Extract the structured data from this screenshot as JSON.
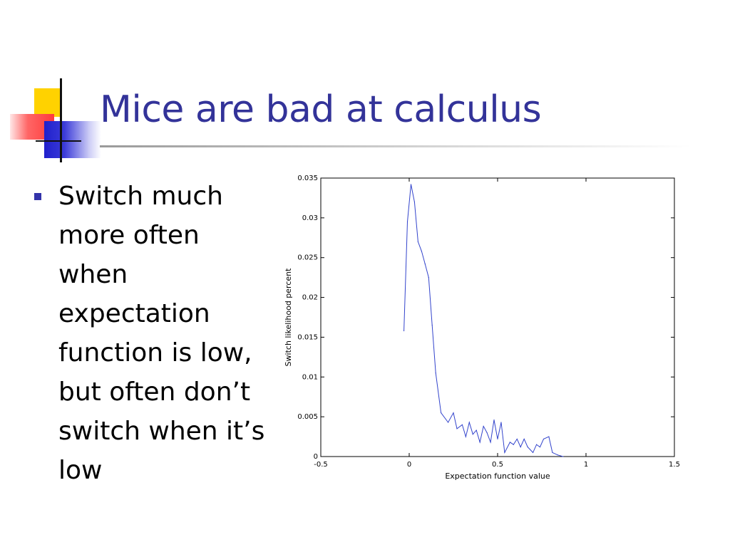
{
  "slide": {
    "title": "Mice are bad at calculus",
    "bullet": "Switch much more often when expectation function is low, but often don’t switch when it’s low"
  },
  "chart_data": {
    "type": "line",
    "title": "",
    "xlabel": "Expectation function value",
    "ylabel": "Switch likelihood percent",
    "xlim": [
      -0.5,
      1.5
    ],
    "ylim": [
      0,
      0.035
    ],
    "xticks": [
      "-0.5",
      "0",
      "0.5",
      "1",
      "1.5"
    ],
    "yticks": [
      "0",
      "0.005",
      "0.01",
      "0.015",
      "0.02",
      "0.025",
      "0.03",
      "0.035"
    ],
    "grid": false,
    "line_color": "#3344cc",
    "series": [
      {
        "x": [
          -0.03,
          -0.01,
          0.01,
          0.03,
          0.05,
          0.07,
          0.09,
          0.11,
          0.13,
          0.15,
          0.18,
          0.22,
          0.25,
          0.27,
          0.3,
          0.32,
          0.34,
          0.36,
          0.38,
          0.4,
          0.42,
          0.44,
          0.46,
          0.48,
          0.5,
          0.52,
          0.54,
          0.57,
          0.59,
          0.61,
          0.63,
          0.65,
          0.67,
          0.7,
          0.72,
          0.74,
          0.76,
          0.79,
          0.81,
          0.84,
          0.87
        ],
        "y": [
          0.0158,
          0.0295,
          0.0342,
          0.032,
          0.027,
          0.0258,
          0.0242,
          0.0225,
          0.0165,
          0.0105,
          0.0055,
          0.0043,
          0.0055,
          0.0035,
          0.004,
          0.0025,
          0.0043,
          0.0028,
          0.0033,
          0.0018,
          0.0038,
          0.003,
          0.0018,
          0.0046,
          0.0022,
          0.0043,
          0.0005,
          0.0018,
          0.0015,
          0.0022,
          0.0012,
          0.0022,
          0.0012,
          0.0005,
          0.0015,
          0.0012,
          0.0022,
          0.0025,
          0.0005,
          0.0002,
          0.0
        ]
      }
    ]
  }
}
